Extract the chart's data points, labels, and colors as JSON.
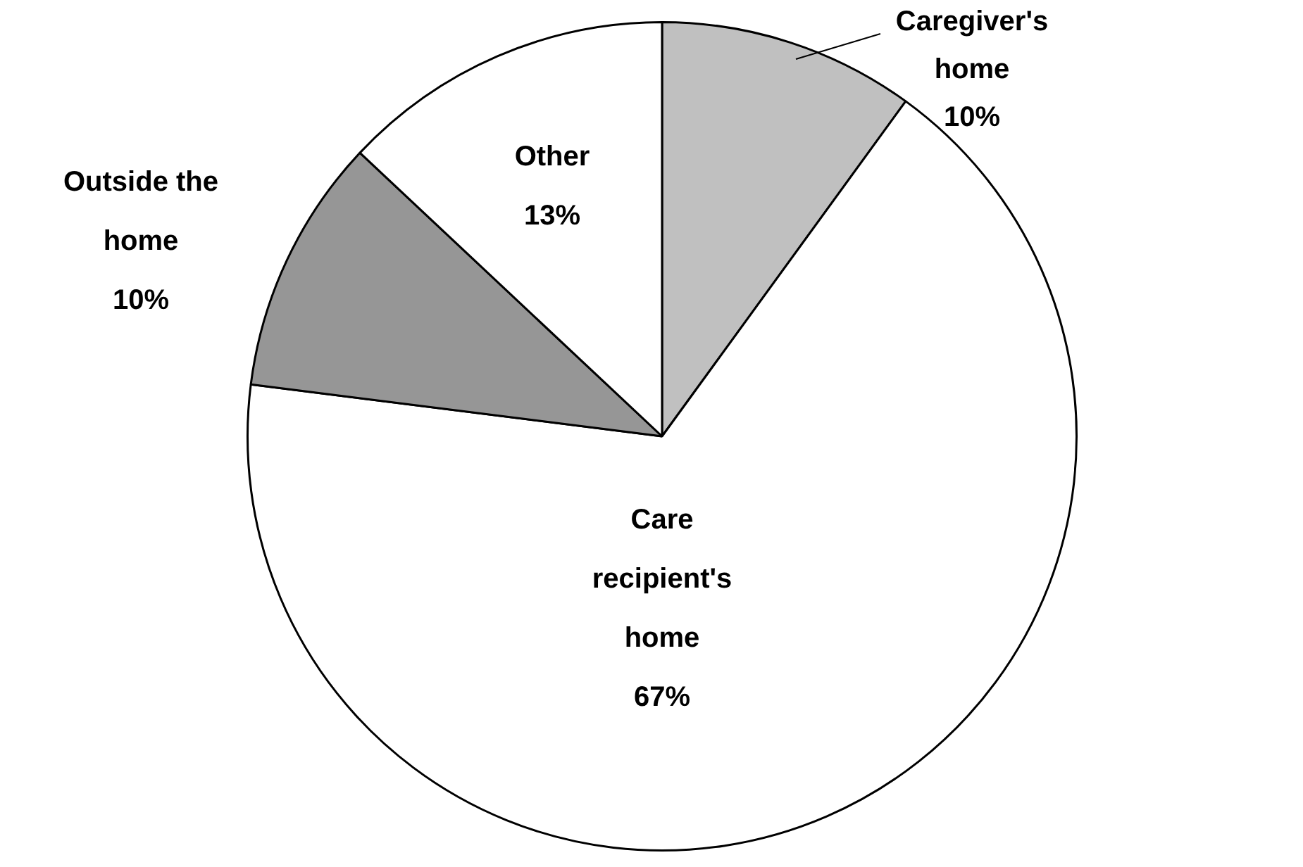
{
  "chart_data": {
    "type": "pie",
    "categories": [
      "Caregiver's home",
      "Care recipient's home",
      "Outside the home",
      "Other"
    ],
    "values": [
      10,
      67,
      10,
      13
    ],
    "colors": [
      "#c0c0c0",
      "#ffffff",
      "#969696",
      "#ffffff"
    ],
    "value_labels": [
      "10%",
      "67%",
      "10%",
      "13%"
    ],
    "legend": false
  }
}
